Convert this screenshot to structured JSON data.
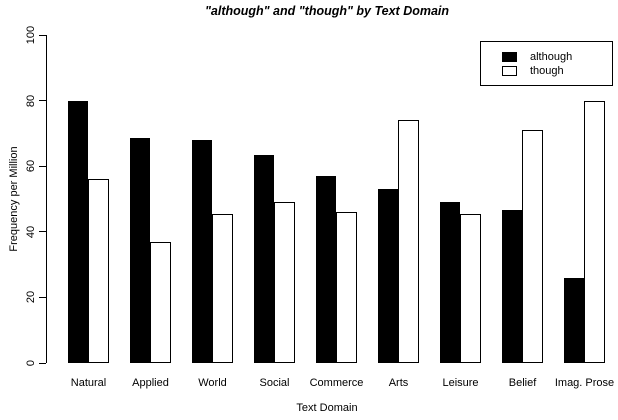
{
  "title": "\"although\" and \"though\" by Text Domain",
  "colors": {
    "foreground": "#000000",
    "background": "#FFFFFF",
    "bar_although_fill": "#000000",
    "bar_though_fill": "#FFFFFF",
    "bar_border": "#000000"
  },
  "chart_data": {
    "type": "bar",
    "title": "\"although\" and \"though\" by Text Domain",
    "xlabel": "Text Domain",
    "ylabel": "Frequency per Million",
    "ylim": [
      0,
      100
    ],
    "yticks": [
      0,
      20,
      40,
      60,
      80,
      100
    ],
    "grid": false,
    "legend_position": "top-right",
    "categories": [
      "Natural",
      "Applied",
      "World",
      "Social",
      "Commerce",
      "Arts",
      "Leisure",
      "Belief",
      "Imag. Prose"
    ],
    "series": [
      {
        "name": "although",
        "fill": "#000000",
        "values": [
          80,
          68.5,
          68,
          63.5,
          57,
          53,
          49,
          46.5,
          26
        ]
      },
      {
        "name": "though",
        "fill": "#FFFFFF",
        "values": [
          56,
          37,
          45.5,
          49,
          46,
          74,
          45.5,
          71,
          80
        ]
      }
    ]
  }
}
